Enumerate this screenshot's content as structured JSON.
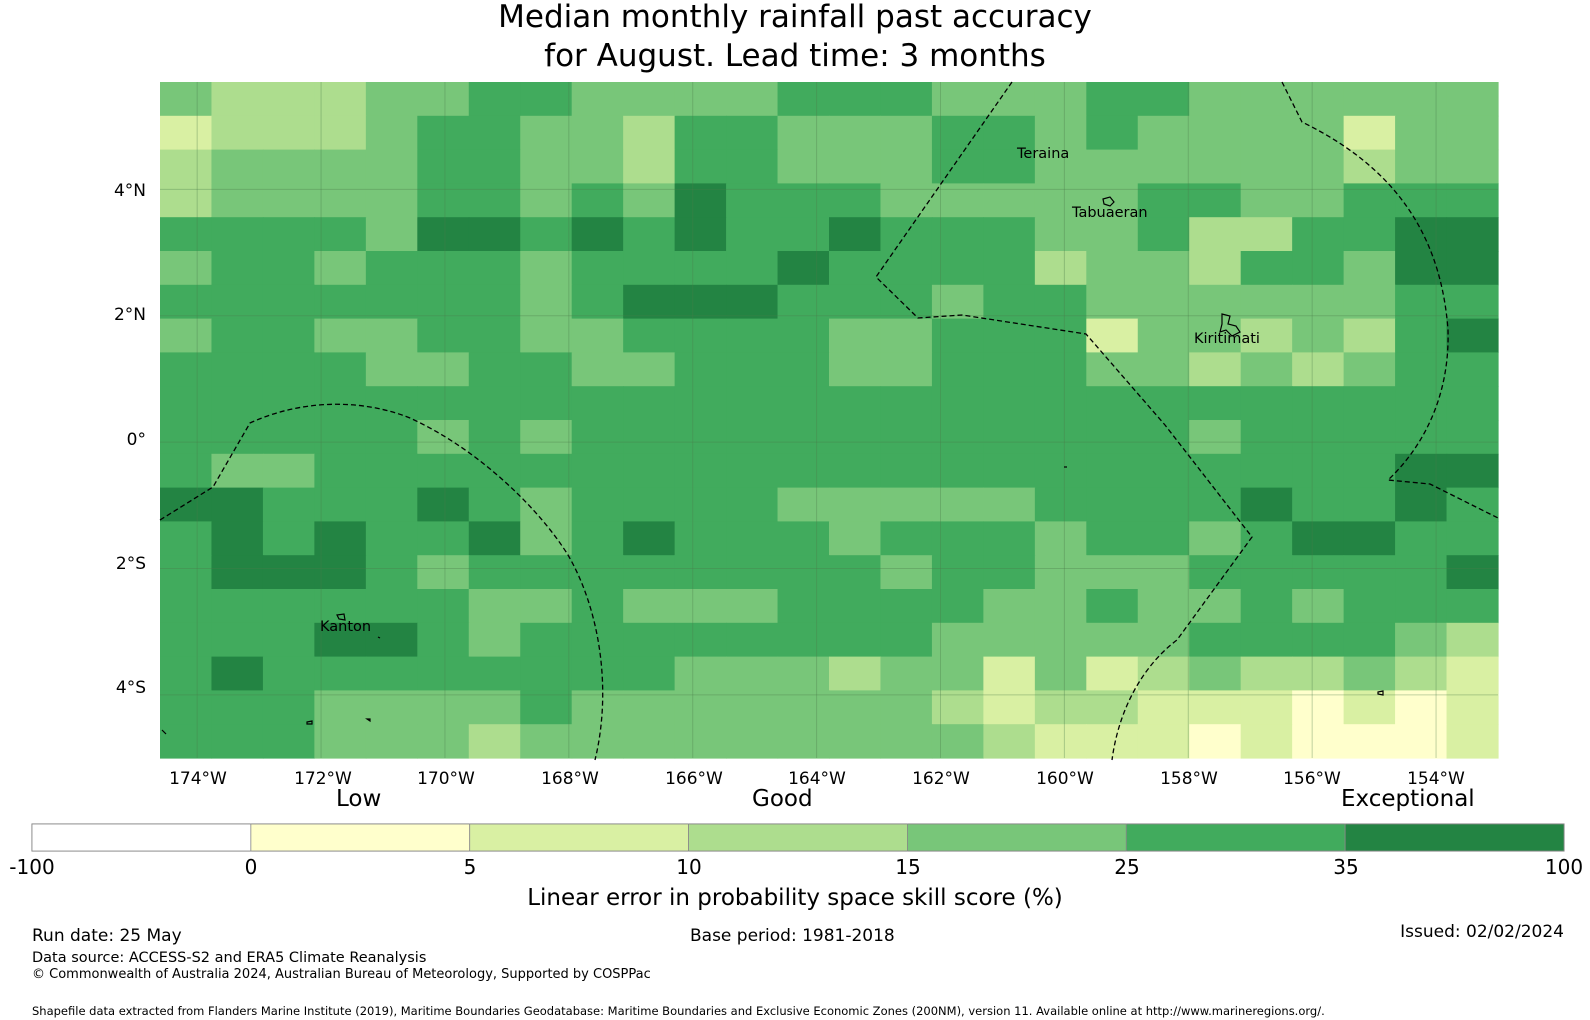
{
  "title": {
    "line1": "Median monthly rainfall past accuracy",
    "line2": "for August. Lead time: 3 months"
  },
  "map": {
    "lon_range": [
      -174.6,
      -153.0
    ],
    "lat_range": [
      -5.0,
      5.7
    ],
    "grid_cols": 26,
    "grid_rows": 20,
    "lat_ticks": [
      "4°N",
      "2°N",
      "0°",
      "2°S",
      "4°S"
    ],
    "lon_ticks": [
      "174°W",
      "172°W",
      "170°W",
      "168°W",
      "166°W",
      "164°W",
      "162°W",
      "160°W",
      "158°W",
      "156°W",
      "154°W"
    ],
    "cell_classes": [
      [
        4,
        3,
        3,
        3,
        4,
        4,
        5,
        5,
        4,
        4,
        4,
        4,
        5,
        5,
        5,
        4,
        4,
        4,
        5,
        5,
        4,
        4,
        4,
        4,
        4,
        4
      ],
      [
        2,
        3,
        3,
        3,
        4,
        5,
        5,
        4,
        4,
        3,
        5,
        5,
        4,
        4,
        4,
        5,
        5,
        4,
        5,
        4,
        4,
        4,
        4,
        2,
        4,
        4
      ],
      [
        3,
        4,
        4,
        4,
        4,
        5,
        5,
        4,
        4,
        3,
        5,
        5,
        4,
        4,
        4,
        5,
        5,
        4,
        4,
        4,
        4,
        4,
        4,
        3,
        4,
        4
      ],
      [
        3,
        4,
        4,
        4,
        4,
        5,
        5,
        4,
        5,
        4,
        6,
        5,
        5,
        5,
        4,
        4,
        4,
        4,
        4,
        5,
        5,
        4,
        4,
        5,
        5,
        5
      ],
      [
        5,
        5,
        5,
        5,
        4,
        6,
        6,
        5,
        6,
        5,
        6,
        5,
        5,
        6,
        5,
        5,
        5,
        4,
        4,
        5,
        3,
        3,
        5,
        5,
        6,
        6
      ],
      [
        4,
        5,
        5,
        4,
        5,
        5,
        5,
        4,
        5,
        5,
        5,
        5,
        6,
        5,
        5,
        5,
        5,
        3,
        4,
        4,
        3,
        5,
        5,
        4,
        6,
        6
      ],
      [
        5,
        5,
        5,
        5,
        5,
        5,
        5,
        4,
        5,
        6,
        6,
        6,
        5,
        5,
        5,
        4,
        5,
        5,
        4,
        4,
        4,
        4,
        4,
        4,
        5,
        5
      ],
      [
        4,
        5,
        5,
        4,
        4,
        5,
        5,
        4,
        4,
        5,
        5,
        5,
        5,
        4,
        4,
        5,
        5,
        5,
        2,
        4,
        4,
        3,
        4,
        3,
        5,
        6
      ],
      [
        5,
        5,
        5,
        5,
        4,
        4,
        5,
        5,
        4,
        4,
        5,
        5,
        5,
        4,
        4,
        5,
        5,
        5,
        4,
        4,
        3,
        4,
        3,
        4,
        5,
        5
      ],
      [
        5,
        5,
        5,
        5,
        5,
        5,
        5,
        5,
        5,
        5,
        5,
        5,
        5,
        5,
        5,
        5,
        5,
        5,
        5,
        5,
        5,
        5,
        5,
        5,
        5,
        5
      ],
      [
        5,
        5,
        5,
        5,
        5,
        4,
        5,
        4,
        5,
        5,
        5,
        5,
        5,
        5,
        5,
        5,
        5,
        5,
        5,
        5,
        4,
        5,
        5,
        5,
        5,
        5
      ],
      [
        5,
        4,
        4,
        5,
        5,
        5,
        5,
        5,
        5,
        5,
        5,
        5,
        5,
        5,
        5,
        5,
        5,
        5,
        5,
        5,
        5,
        5,
        5,
        5,
        6,
        6
      ],
      [
        6,
        6,
        5,
        5,
        5,
        6,
        5,
        4,
        5,
        5,
        5,
        5,
        4,
        4,
        4,
        4,
        4,
        5,
        5,
        5,
        5,
        6,
        5,
        5,
        6,
        5
      ],
      [
        5,
        6,
        5,
        6,
        5,
        5,
        6,
        4,
        5,
        6,
        5,
        5,
        5,
        4,
        5,
        5,
        5,
        4,
        5,
        5,
        4,
        5,
        6,
        6,
        5,
        5
      ],
      [
        5,
        6,
        6,
        6,
        5,
        4,
        5,
        5,
        5,
        5,
        5,
        5,
        5,
        5,
        4,
        5,
        5,
        4,
        4,
        4,
        5,
        5,
        5,
        5,
        5,
        6
      ],
      [
        5,
        5,
        5,
        5,
        5,
        5,
        4,
        4,
        5,
        4,
        4,
        4,
        5,
        5,
        5,
        5,
        4,
        4,
        5,
        4,
        4,
        5,
        4,
        5,
        5,
        5
      ],
      [
        5,
        5,
        5,
        6,
        6,
        5,
        4,
        5,
        5,
        5,
        5,
        5,
        5,
        5,
        5,
        4,
        4,
        4,
        4,
        4,
        5,
        5,
        5,
        5,
        4,
        3
      ],
      [
        5,
        6,
        5,
        5,
        5,
        5,
        5,
        5,
        5,
        5,
        4,
        4,
        4,
        3,
        4,
        4,
        2,
        4,
        2,
        3,
        4,
        3,
        3,
        4,
        3,
        2
      ],
      [
        5,
        5,
        5,
        4,
        4,
        4,
        4,
        5,
        4,
        4,
        4,
        4,
        4,
        4,
        4,
        3,
        2,
        3,
        3,
        2,
        2,
        2,
        1,
        2,
        1,
        2
      ],
      [
        5,
        5,
        5,
        4,
        4,
        4,
        3,
        4,
        4,
        4,
        4,
        4,
        4,
        4,
        4,
        4,
        3,
        2,
        2,
        2,
        1,
        2,
        1,
        1,
        1,
        2
      ]
    ],
    "places": {
      "teraina": "Teraina",
      "tabuaeran": "Tabuaeran",
      "kiritimati": "Kiritimati",
      "kanton": "Kanton"
    }
  },
  "colorbar": {
    "categories": [
      "Low",
      "Good",
      "Exceptional"
    ],
    "ticks": [
      "-100",
      "0",
      "5",
      "10",
      "15",
      "25",
      "35",
      "100"
    ],
    "colors": [
      "#ffffff",
      "#ffffcc",
      "#d9f0a3",
      "#addd8e",
      "#78c679",
      "#41ab5d",
      "#238443"
    ],
    "title": "Linear error in probability space skill score (%)"
  },
  "footer": {
    "run_date": "Run date: 25 May",
    "base_period": "Base period: 1981-2018",
    "issued": "Issued: 02/02/2024",
    "data_source": "Data source: ACCESS-S2 and ERA5 Climate Reanalysis",
    "copyright": "© Commonwealth of Australia 2024, Australian Bureau of Meteorology, Supported by COSPPac",
    "shapefile": "Shapefile data extracted from Flanders Marine Institute (2019), Maritime Boundaries Geodatabase: Maritime Boundaries and Exclusive Economic Zones (200NM), version 11. Available online at http://www.marineregions.org/."
  }
}
